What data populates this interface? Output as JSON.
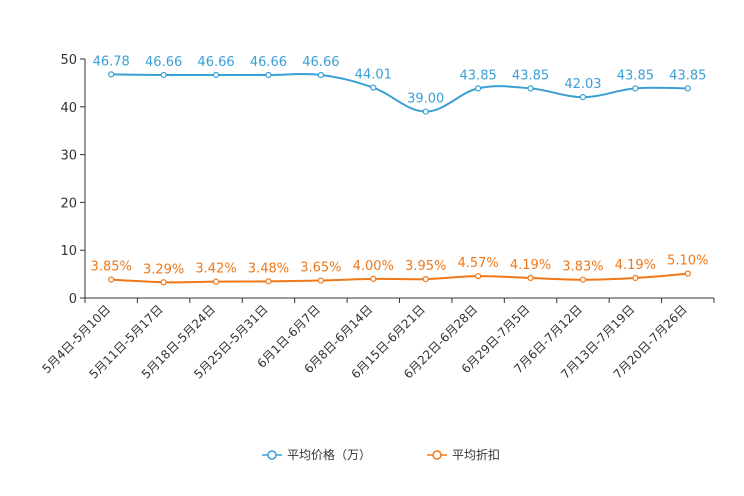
{
  "chart_data": {
    "type": "line",
    "categories": [
      "5月4日-5月10日",
      "5月11日-5月17日",
      "5月18日-5月24日",
      "5月25日-5月31日",
      "6月1日-6月7日",
      "6月8日-6月14日",
      "6月15日-6月21日",
      "6月22日-6月28日",
      "6月29日-7月5日",
      "7月6日-7月12日",
      "7月13日-7月19日",
      "7月20日-7月26日"
    ],
    "ylim": [
      0,
      50
    ],
    "yticks": [
      0,
      10,
      20,
      30,
      40,
      50
    ],
    "series": [
      {
        "name": "平均价格（万）",
        "color": "#3a9fd4",
        "values": [
          46.78,
          46.66,
          46.66,
          46.66,
          46.66,
          44.01,
          39.0,
          43.85,
          43.85,
          42.03,
          43.85,
          43.85
        ],
        "labels": [
          "46.78",
          "46.66",
          "46.66",
          "46.66",
          "46.66",
          "44.01",
          "39.00",
          "43.85",
          "43.85",
          "42.03",
          "43.85",
          "43.85"
        ]
      },
      {
        "name": "平均折扣",
        "color": "#f07818",
        "values": [
          3.85,
          3.29,
          3.42,
          3.48,
          3.65,
          4.0,
          3.95,
          4.57,
          4.19,
          3.83,
          4.19,
          5.1
        ],
        "labels": [
          "3.85%",
          "3.29%",
          "3.42%",
          "3.48%",
          "3.65%",
          "4.00%",
          "3.95%",
          "4.57%",
          "4.19%",
          "3.83%",
          "4.19%",
          "5.10%"
        ]
      }
    ],
    "legend_position": "bottom-center"
  }
}
